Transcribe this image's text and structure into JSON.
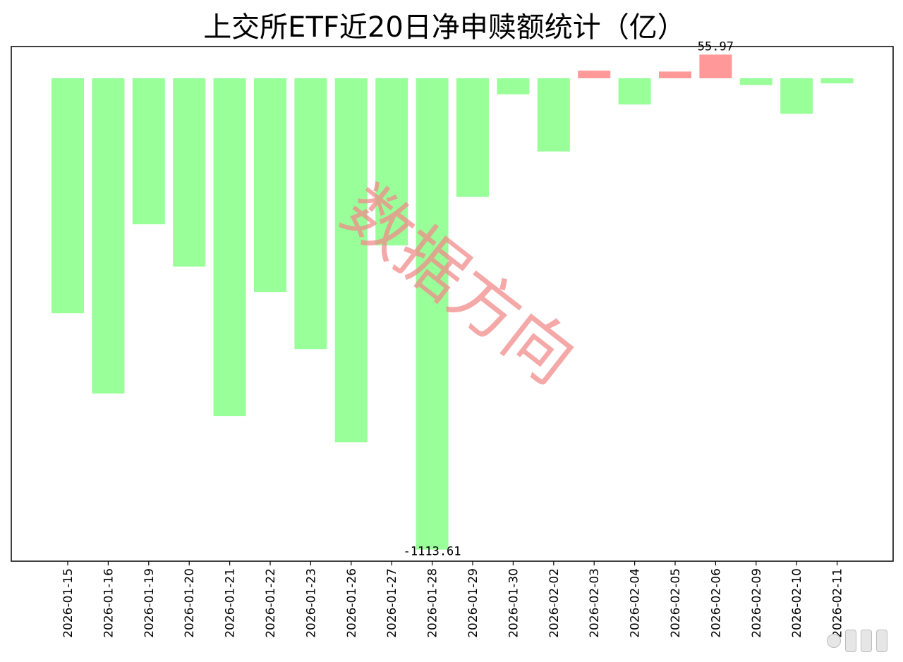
{
  "chart_data": {
    "type": "bar",
    "title": "上交所ETF近20日净申赎额统计（亿）",
    "categories": [
      "2026-01-15",
      "2026-01-16",
      "2026-01-19",
      "2026-01-20",
      "2026-01-21",
      "2026-01-22",
      "2026-01-23",
      "2026-01-26",
      "2026-01-27",
      "2026-01-28",
      "2026-01-29",
      "2026-01-30",
      "2026-02-02",
      "2026-02-03",
      "2026-02-04",
      "2026-02-05",
      "2026-02-06",
      "2026-02-09",
      "2026-02-10",
      "2026-02-11"
    ],
    "values": [
      -555,
      -745,
      -345,
      -445,
      -798,
      -505,
      -640,
      -860,
      -395,
      -1113.61,
      -280,
      -38,
      -173,
      18,
      -62,
      16,
      55.97,
      -16,
      -84,
      -12
    ],
    "ylim": [
      -1141,
      75
    ],
    "annotations": [
      {
        "category": "2026-02-06",
        "text": "55.97"
      },
      {
        "category": "2026-01-28",
        "text": "-1113.61"
      }
    ],
    "grid": false,
    "colors": {
      "positive": "#ff9999",
      "negative": "#99ff99"
    }
  },
  "watermark": "数据方向"
}
